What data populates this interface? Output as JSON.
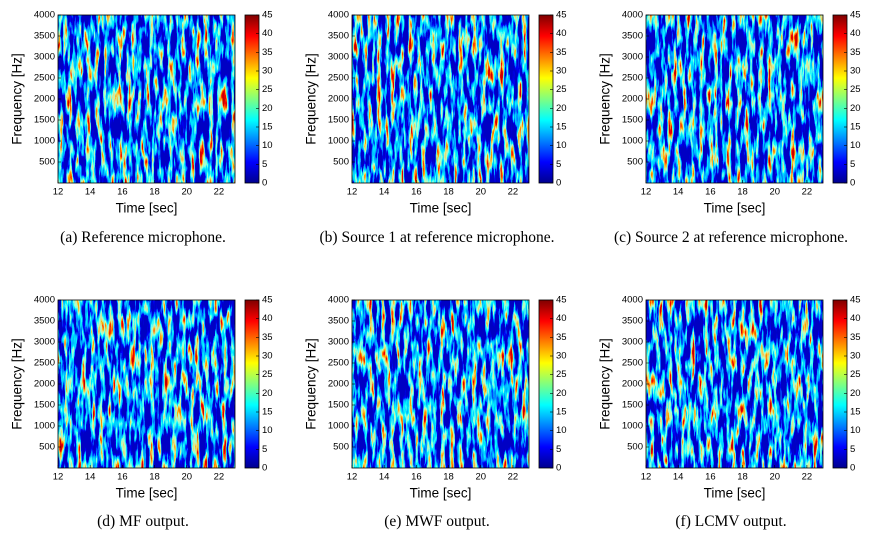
{
  "chart_data": [
    {
      "type": "heatmap",
      "caption": "(a) Reference microphone.",
      "xlabel": "Time [sec]",
      "ylabel": "Frequency [Hz]",
      "xlim": [
        12,
        23
      ],
      "xticks": [
        12,
        14,
        16,
        18,
        20,
        22
      ],
      "ylim": [
        0,
        4000
      ],
      "yticks": [
        500,
        1000,
        1500,
        2000,
        2500,
        3000,
        3500,
        4000
      ],
      "clim": [
        0,
        45
      ],
      "cticks": [
        0,
        5,
        10,
        15,
        20,
        25,
        30,
        35,
        40,
        45
      ],
      "colormap": "jet"
    },
    {
      "type": "heatmap",
      "caption": "(b) Source 1 at reference micro­phone.",
      "xlabel": "Time [sec]",
      "ylabel": "Frequency [Hz]",
      "xlim": [
        12,
        23
      ],
      "xticks": [
        12,
        14,
        16,
        18,
        20,
        22
      ],
      "ylim": [
        0,
        4000
      ],
      "yticks": [
        500,
        1000,
        1500,
        2000,
        2500,
        3000,
        3500,
        4000
      ],
      "clim": [
        0,
        45
      ],
      "cticks": [
        0,
        5,
        10,
        15,
        20,
        25,
        30,
        35,
        40,
        45
      ],
      "colormap": "jet"
    },
    {
      "type": "heatmap",
      "caption": "(c) Source 2 at reference micro­phone.",
      "xlabel": "Time [sec]",
      "ylabel": "Frequency [Hz]",
      "xlim": [
        12,
        23
      ],
      "xticks": [
        12,
        14,
        16,
        18,
        20,
        22
      ],
      "ylim": [
        0,
        4000
      ],
      "yticks": [
        500,
        1000,
        1500,
        2000,
        2500,
        3000,
        3500,
        4000
      ],
      "clim": [
        0,
        45
      ],
      "cticks": [
        0,
        5,
        10,
        15,
        20,
        25,
        30,
        35,
        40,
        45
      ],
      "colormap": "jet"
    },
    {
      "type": "heatmap",
      "caption": "(d) MF output.",
      "xlabel": "Time [sec]",
      "ylabel": "Frequency [Hz]",
      "xlim": [
        12,
        23
      ],
      "xticks": [
        12,
        14,
        16,
        18,
        20,
        22
      ],
      "ylim": [
        0,
        4000
      ],
      "yticks": [
        500,
        1000,
        1500,
        2000,
        2500,
        3000,
        3500,
        4000
      ],
      "clim": [
        0,
        45
      ],
      "cticks": [
        0,
        5,
        10,
        15,
        20,
        25,
        30,
        35,
        40,
        45
      ],
      "colormap": "jet"
    },
    {
      "type": "heatmap",
      "caption": "(e) MWF output.",
      "xlabel": "Time [sec]",
      "ylabel": "Frequency [Hz]",
      "xlim": [
        12,
        23
      ],
      "xticks": [
        12,
        14,
        16,
        18,
        20,
        22
      ],
      "ylim": [
        0,
        4000
      ],
      "yticks": [
        500,
        1000,
        1500,
        2000,
        2500,
        3000,
        3500,
        4000
      ],
      "clim": [
        0,
        45
      ],
      "cticks": [
        0,
        5,
        10,
        15,
        20,
        25,
        30,
        35,
        40,
        45
      ],
      "colormap": "jet"
    },
    {
      "type": "heatmap",
      "caption": "(f) LCMV output.",
      "xlabel": "Time [sec]",
      "ylabel": "Frequency [Hz]",
      "xlim": [
        12,
        23
      ],
      "xticks": [
        12,
        14,
        16,
        18,
        20,
        22
      ],
      "ylim": [
        0,
        4000
      ],
      "yticks": [
        500,
        1000,
        1500,
        2000,
        2500,
        3000,
        3500,
        4000
      ],
      "clim": [
        0,
        45
      ],
      "cticks": [
        0,
        5,
        10,
        15,
        20,
        25,
        30,
        35,
        40,
        45
      ],
      "colormap": "jet"
    }
  ]
}
